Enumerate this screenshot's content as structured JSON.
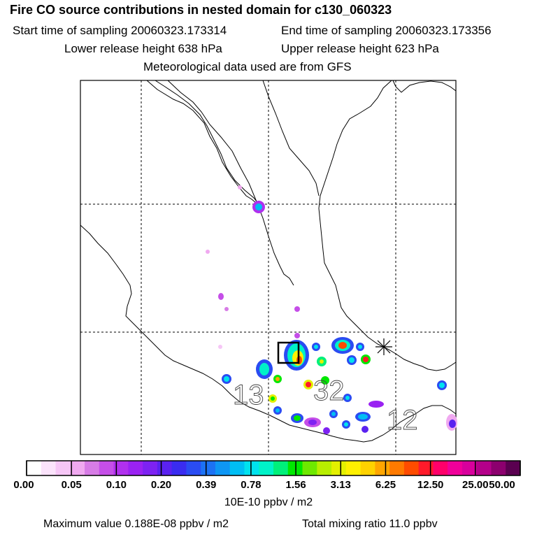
{
  "header": {
    "title": "Fire CO source contributions in nested domain for c130_060323",
    "start_label": "Start time of sampling 20060323.173314",
    "end_label": "End time of sampling 20060323.173356",
    "lower_label": "Lower release height  638 hPa",
    "upper_label": "Upper release height  623 hPa",
    "met_label": "Meteorological data used are from GFS"
  },
  "map": {
    "numbers": [
      "13",
      "32",
      "12"
    ]
  },
  "colorbar": {
    "colors": [
      "#ffffff",
      "#fbe3fb",
      "#f6c6f6",
      "#f0a9f0",
      "#d77ce6",
      "#c54ee8",
      "#b030ee",
      "#9a22f2",
      "#7d22f2",
      "#5a22f0",
      "#3a2cf0",
      "#2a4cf2",
      "#1c72f4",
      "#0e96f4",
      "#00bef4",
      "#00e2ee",
      "#00f2c8",
      "#00f07a",
      "#00e800",
      "#6ee800",
      "#b8ee00",
      "#e4f000",
      "#fff000",
      "#ffd200",
      "#ffa600",
      "#ff7a00",
      "#ff4c00",
      "#ff1a2a",
      "#ff006a",
      "#f0009a",
      "#d8009c",
      "#b4008a",
      "#8c006e",
      "#5a0050"
    ],
    "labels": [
      "0.00",
      "0.05",
      "0.10",
      "0.20",
      "0.39",
      "0.78",
      "1.56",
      "3.13",
      "6.25",
      "12.50",
      "25.00",
      "50.00"
    ],
    "unit": "10E-10 ppbv / m2"
  },
  "footer": {
    "max_label": "Maximum value  0.188E-08 ppbv / m2",
    "total_label": "Total mixing ratio       11.0 ppbv"
  }
}
